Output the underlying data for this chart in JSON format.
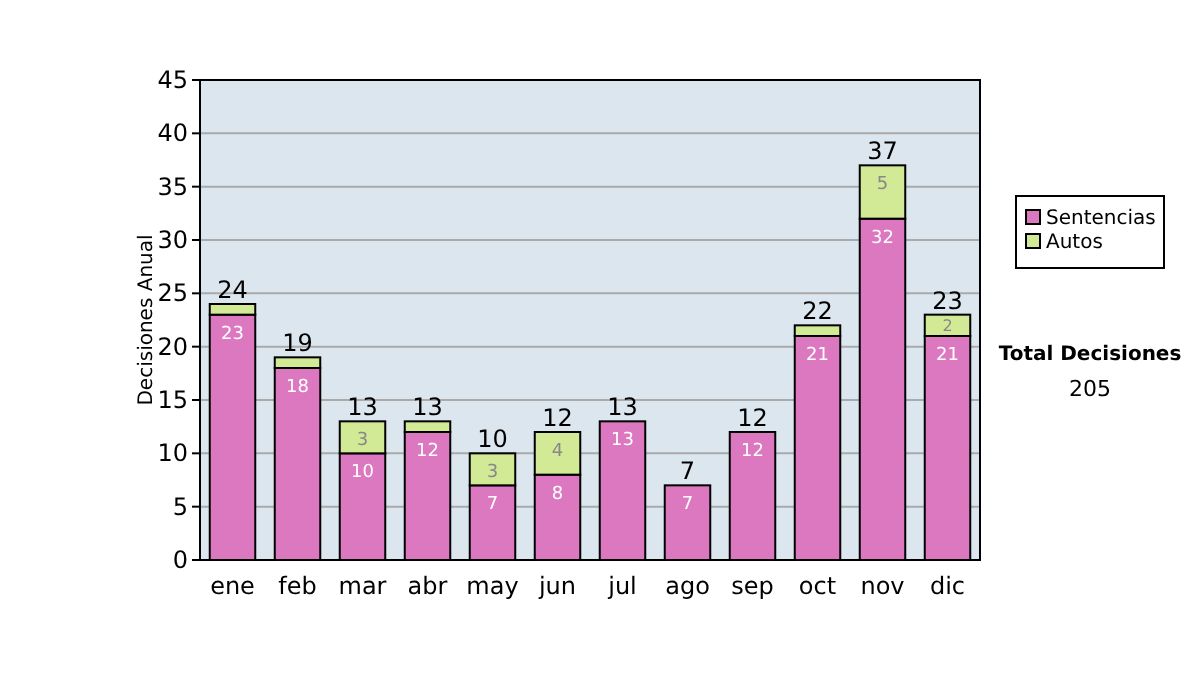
{
  "chart_data": {
    "type": "bar",
    "stacked": true,
    "ylabel": "Decisiones Anual",
    "categories": [
      "ene",
      "feb",
      "mar",
      "abr",
      "may",
      "jun",
      "jul",
      "ago",
      "sep",
      "oct",
      "nov",
      "dic"
    ],
    "series": [
      {
        "name": "Sentencias",
        "color": "#dc78c0",
        "values": [
          23,
          18,
          10,
          12,
          7,
          8,
          13,
          7,
          12,
          21,
          32,
          21
        ],
        "value_labels": [
          "23",
          "18",
          "10",
          "12",
          "7",
          "8",
          "13",
          "7",
          "12",
          "21",
          "32",
          "21"
        ]
      },
      {
        "name": "Autos",
        "color": "#d2e996",
        "values": [
          1,
          1,
          3,
          1,
          3,
          4,
          0,
          0,
          0,
          1,
          5,
          2
        ],
        "value_labels": [
          null,
          null,
          "3",
          null,
          "3",
          "4",
          null,
          null,
          null,
          null,
          "5",
          "2"
        ]
      }
    ],
    "totals": [
      "24",
      "19",
      "13",
      "13",
      "10",
      "12",
      "13",
      "7",
      "12",
      "22",
      "37",
      "23"
    ],
    "ylim": [
      0,
      45
    ],
    "yticks": [
      0,
      5,
      10,
      15,
      20,
      25,
      30,
      35,
      40,
      45
    ],
    "grid": "y",
    "legend": "right",
    "annotations": [
      "Total Decisiones",
      "205"
    ]
  }
}
